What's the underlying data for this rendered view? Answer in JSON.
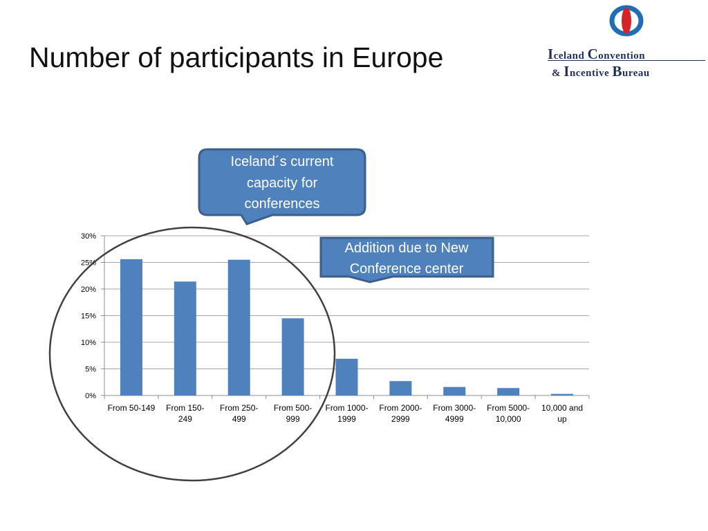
{
  "slide": {
    "title": "Number of participants in Europe"
  },
  "logo": {
    "line1_initial": "I",
    "line1_rest": "celand ",
    "line1_initial2": "C",
    "line1_rest2": "onvention",
    "line2_prefix": "& ",
    "line2_initial": "I",
    "line2_rest": "ncentive ",
    "line2_initial2": "B",
    "line2_rest2": "ureau",
    "colors": {
      "blue": "#1f6db5",
      "red": "#d6232a",
      "text": "#1f2f5a"
    }
  },
  "callouts": {
    "current_capacity": "Iceland´s current\ncapacity for\nconferences",
    "addition": "Addition due to New\nConference center"
  },
  "colors": {
    "bar": "#4f81bd",
    "callout_fill": "#4f81bd",
    "callout_border": "#3a5f8c",
    "circle": "#404040"
  },
  "chart_data": {
    "type": "bar",
    "categories": [
      "From 50-149",
      "From 150-\n249",
      "From 250-\n499",
      "From 500-\n999",
      "From 1000-\n1999",
      "From 2000-\n2999",
      "From 3000-\n4999",
      "From 5000-\n10,000",
      "10,000 and\nup"
    ],
    "values": [
      25.6,
      21.4,
      25.5,
      14.5,
      6.9,
      2.7,
      1.6,
      1.4,
      0.3
    ],
    "ylim": [
      0,
      30
    ],
    "yticks": [
      0,
      5,
      10,
      15,
      20,
      25,
      30
    ],
    "ytick_labels": [
      "0%",
      "5%",
      "10%",
      "15%",
      "20%",
      "25%",
      "30%"
    ],
    "grid": true,
    "title": "",
    "xlabel": "",
    "ylabel": ""
  }
}
